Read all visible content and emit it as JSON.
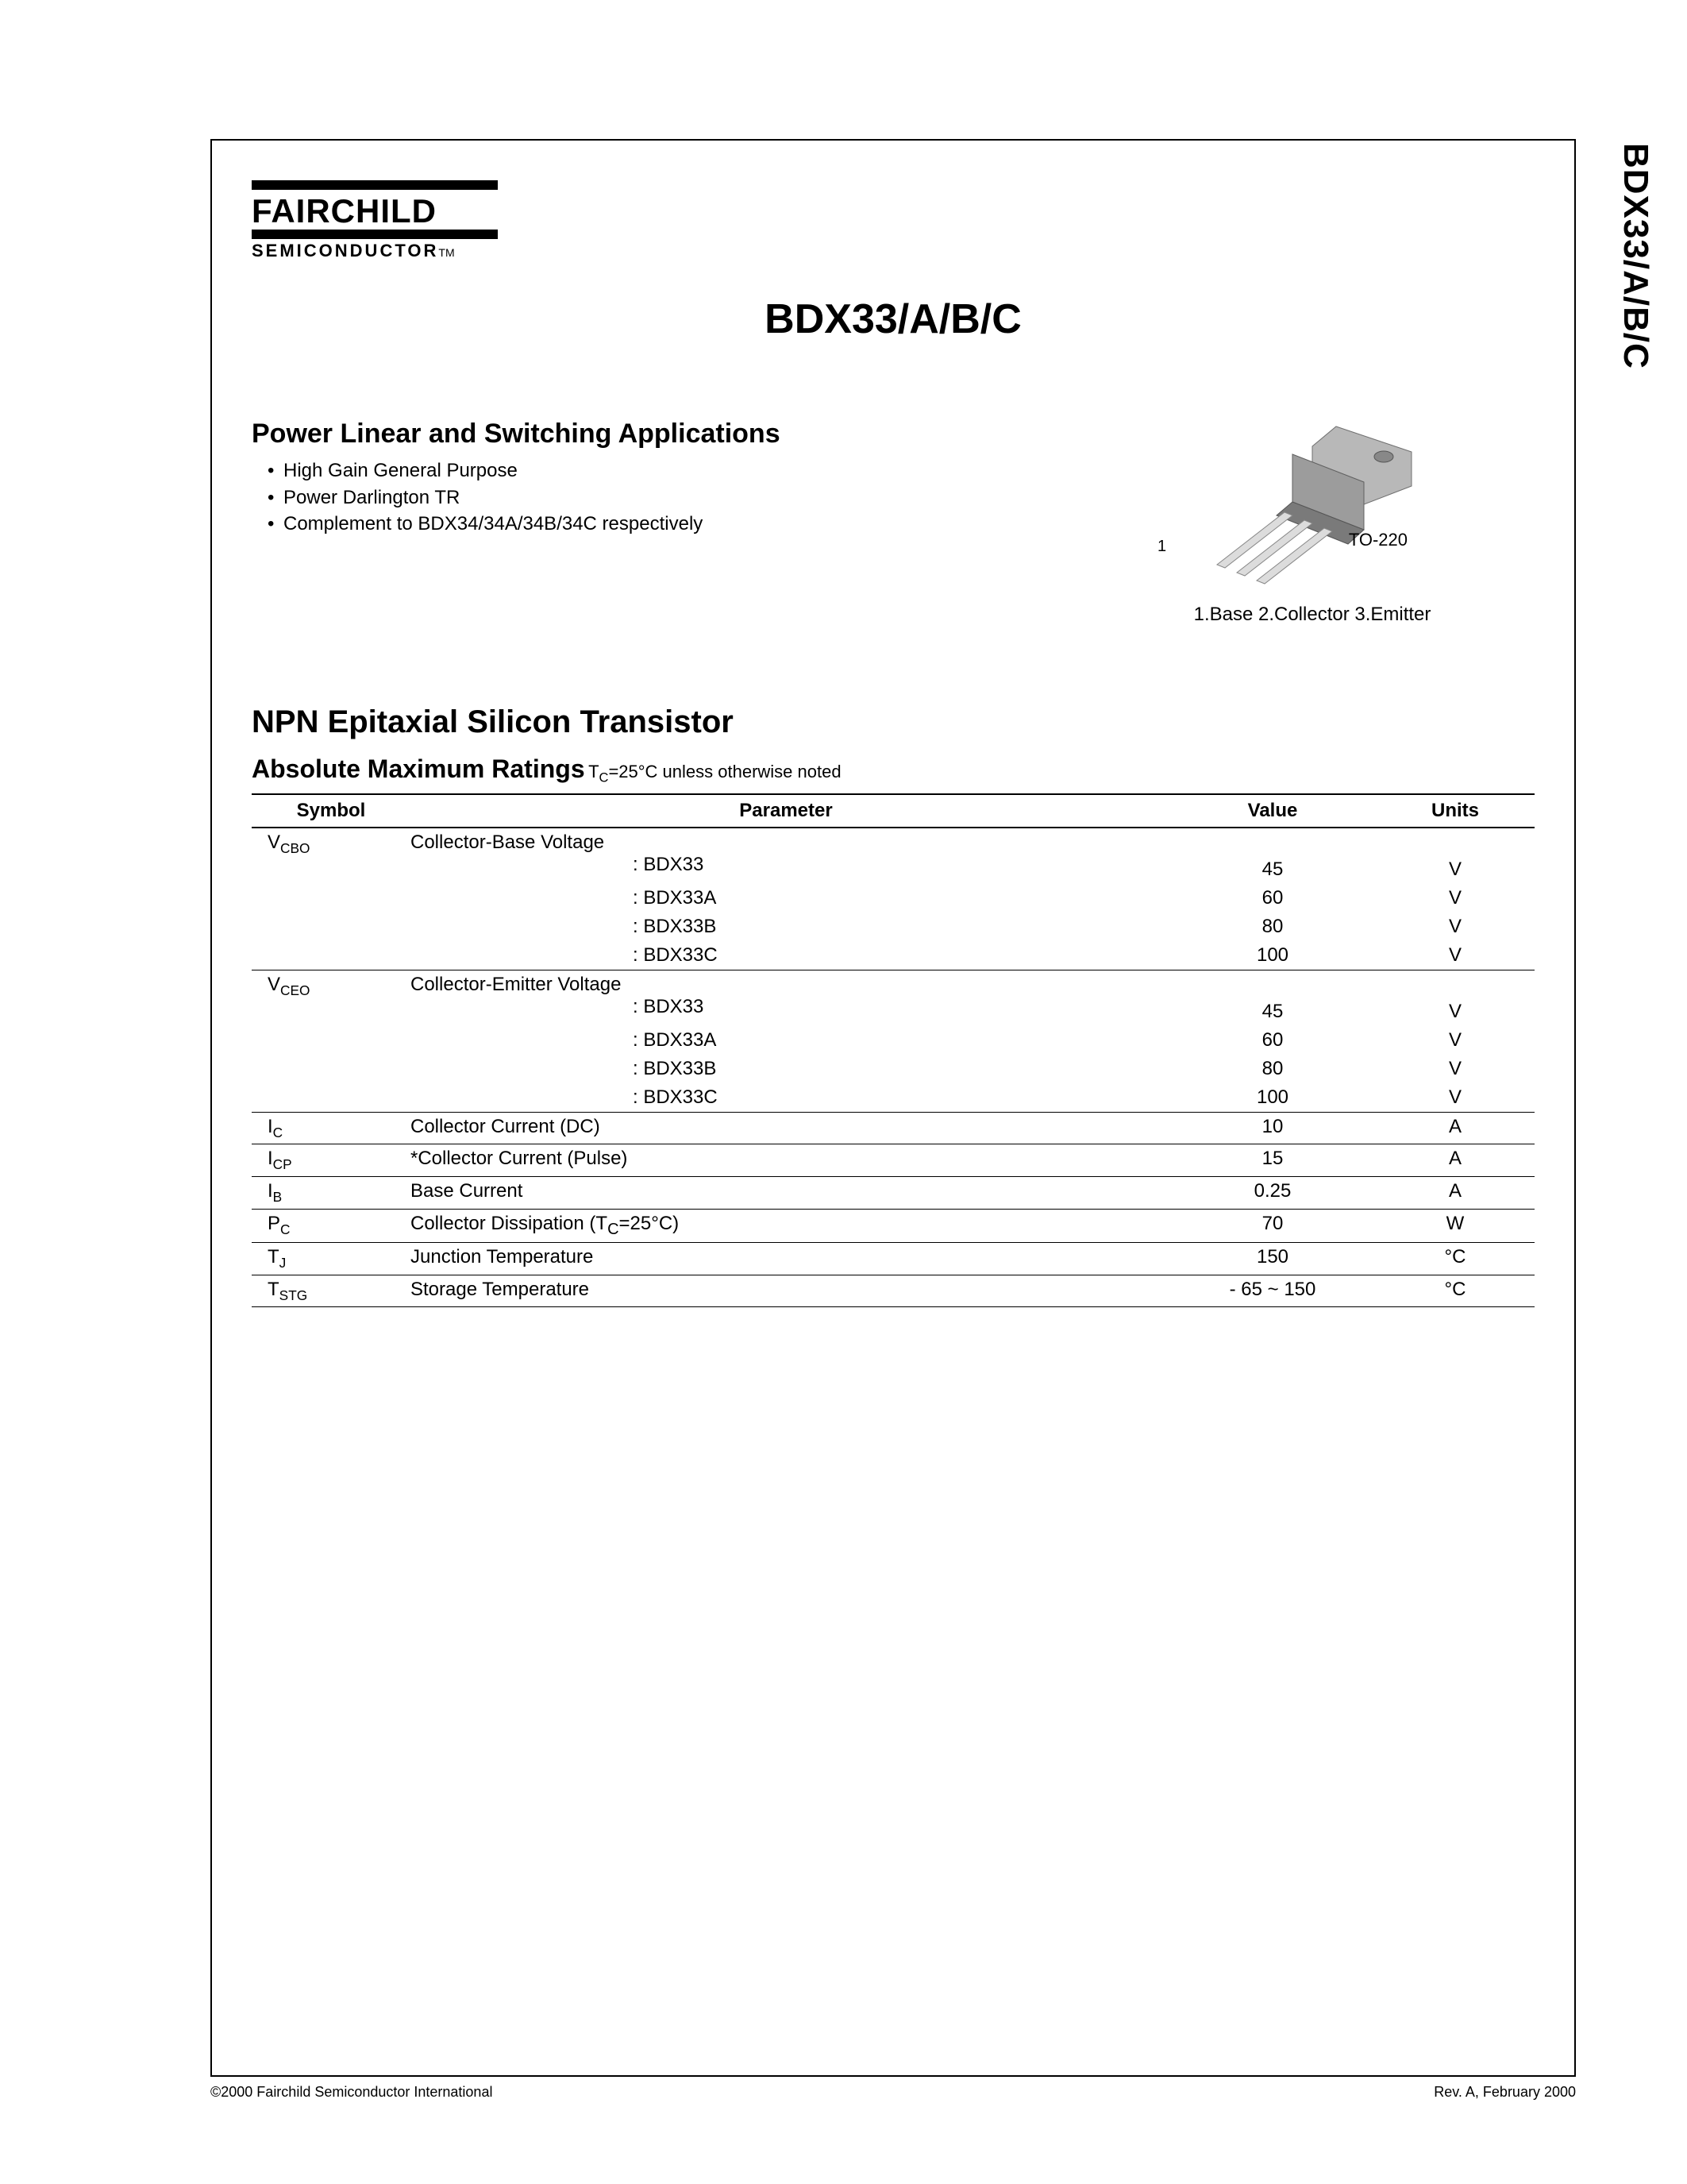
{
  "logo": {
    "name": "FAIRCHILD",
    "sub": "SEMICONDUCTOR",
    "tm": "TM"
  },
  "title": "BDX33/A/B/C",
  "side_title": "BDX33/A/B/C",
  "applications": {
    "heading": "Power Linear and Switching Applications",
    "bullets": [
      "High Gain General Purpose",
      "Power Darlington TR",
      "Complement to BDX34/34A/34B/34C respectively"
    ]
  },
  "package": {
    "label": "TO-220",
    "pin1": "1",
    "legend": "1.Base   2.Collector   3.Emitter",
    "body_fill": "#a8a8a8",
    "body_stroke": "#606060",
    "lead_fill": "#d8d8d8",
    "lead_stroke": "#808080"
  },
  "transistor_heading": "NPN Epitaxial Silicon Transistor",
  "ratings": {
    "heading": "Absolute Maximum Ratings",
    "note_prefix": " T",
    "note_sub": "C",
    "note_rest": "=25°C unless otherwise noted",
    "headers": {
      "symbol": "Symbol",
      "parameter": "Parameter",
      "value": "Value",
      "units": "Units"
    },
    "rows": [
      {
        "type": "group",
        "sym": "V",
        "sub": "CBO",
        "param": "Collector-Base Voltage",
        "items": [
          {
            "label": ": BDX33",
            "value": "45",
            "unit": "V"
          },
          {
            "label": ": BDX33A",
            "value": "60",
            "unit": "V"
          },
          {
            "label": ": BDX33B",
            "value": "80",
            "unit": "V"
          },
          {
            "label": ": BDX33C",
            "value": "100",
            "unit": "V"
          }
        ]
      },
      {
        "type": "group",
        "sym": "V",
        "sub": "CEO",
        "param": "Collector-Emitter Voltage",
        "items": [
          {
            "label": ": BDX33",
            "value": "45",
            "unit": "V"
          },
          {
            "label": ": BDX33A",
            "value": "60",
            "unit": "V"
          },
          {
            "label": ": BDX33B",
            "value": "80",
            "unit": "V"
          },
          {
            "label": ": BDX33C",
            "value": "100",
            "unit": "V"
          }
        ]
      },
      {
        "type": "single",
        "sym": "I",
        "sub": "C",
        "param": "Collector Current (DC)",
        "value": "10",
        "unit": "A"
      },
      {
        "type": "single",
        "sym": "I",
        "sub": "CP",
        "param": "*Collector Current (Pulse)",
        "value": "15",
        "unit": "A"
      },
      {
        "type": "single",
        "sym": "I",
        "sub": "B",
        "param": "Base Current",
        "value": "0.25",
        "unit": "A"
      },
      {
        "type": "single",
        "sym": "P",
        "sub": "C",
        "param_html": "Collector Dissipation (T<sub>C</sub>=25°C)",
        "param": "Collector Dissipation (TC=25°C)",
        "value": "70",
        "unit": "W"
      },
      {
        "type": "single",
        "sym": "T",
        "sub": "J",
        "param": "Junction Temperature",
        "value": "150",
        "unit": "°C"
      },
      {
        "type": "single",
        "sym": "T",
        "sub": "STG",
        "param": "Storage Temperature",
        "value": "- 65 ~ 150",
        "unit": "°C"
      }
    ]
  },
  "footer": {
    "left": "©2000 Fairchild Semiconductor International",
    "right": "Rev. A, February 2000"
  },
  "colors": {
    "text": "#000000",
    "border": "#000000",
    "background": "#ffffff"
  }
}
